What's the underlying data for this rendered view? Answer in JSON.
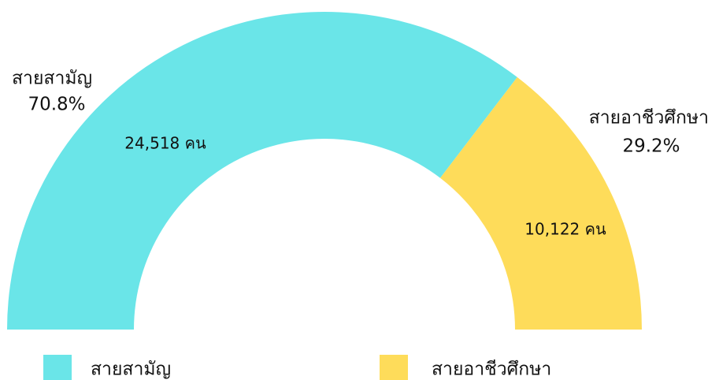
{
  "chart_data": {
    "type": "pie",
    "half": true,
    "categories": [
      "สายสามัญ",
      "สายอาชีวศึกษา"
    ],
    "values": [
      24518,
      10122
    ],
    "value_labels": [
      "24,518 คน",
      "10,122 คน"
    ],
    "percent_labels": [
      "70.8%",
      "29.2%"
    ],
    "colors": [
      "#6ae5e8",
      "#fedc5a"
    ],
    "legend": "bottom"
  }
}
